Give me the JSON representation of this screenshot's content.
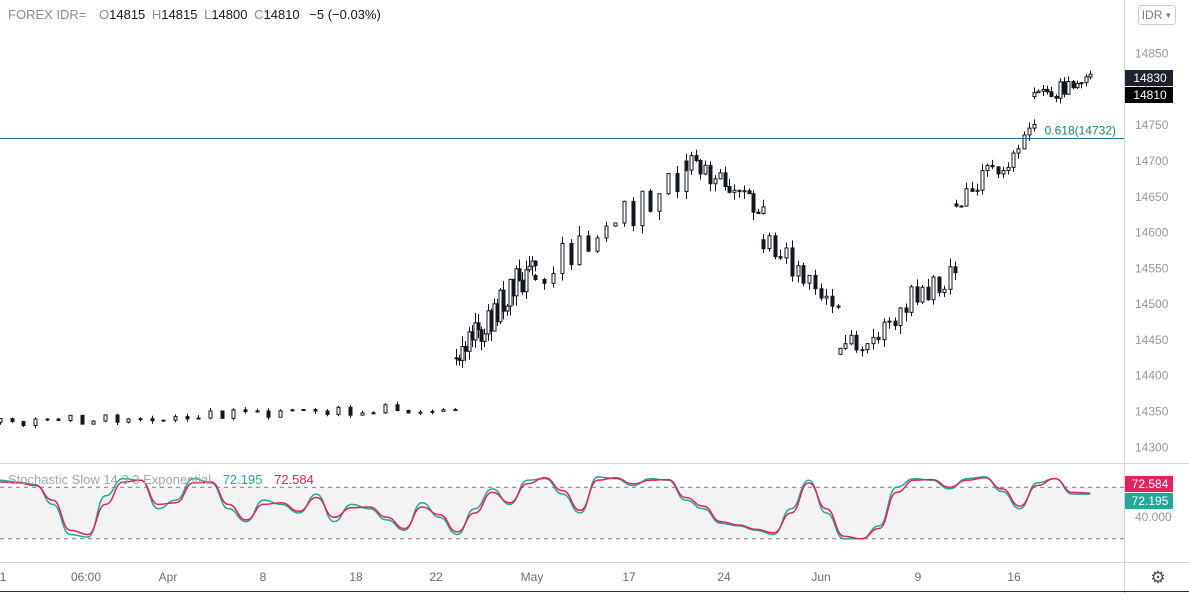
{
  "header": {
    "symbol": "FOREX IDR=",
    "open_label": "O",
    "open": "14815",
    "high_label": "H",
    "high": "14815",
    "low_label": "L",
    "low": "14800",
    "close_label": "C",
    "close": "14810",
    "change": "−5 (−0.03%)"
  },
  "currency_button": {
    "label": "IDR",
    "icon": "chevron-down-icon"
  },
  "settings": {
    "icon": "gear-icon"
  },
  "colors": {
    "candle": "#131722",
    "fib_line": "#1f7a86",
    "fib_label": "#1a7f84",
    "k_line": "#26a69a",
    "d_line": "#e0245e",
    "band_fill": "#f3f3f3",
    "axis_text": "#9598a1"
  },
  "chart_data": [
    {
      "type": "candlestick",
      "title": "",
      "price_axis": {
        "ticks": [
          14300,
          14350,
          14400,
          14450,
          14500,
          14550,
          14600,
          14650,
          14700,
          14750,
          14800,
          14850
        ],
        "ylim": [
          14278,
          14883
        ]
      },
      "time_axis": {
        "ticks": [
          "1",
          "06:00",
          "Apr",
          "8",
          "18",
          "22",
          "May",
          "17",
          "24",
          "Jun",
          "9",
          "16"
        ]
      },
      "last_price_labels": [
        {
          "value": "14830",
          "color": "#1e222d"
        },
        {
          "value": "14810",
          "color": "#000000"
        }
      ],
      "fibonacci_level": {
        "ratio": "0.618",
        "price": "14732",
        "label": "0.618(14732)"
      },
      "series": [
        {
          "segment": "late-Mar to 22",
          "start": 14335,
          "end": 14356,
          "low": 14322,
          "high": 14375,
          "bars": 40
        },
        {
          "segment": "23 to early May",
          "start": 14425,
          "end": 14560,
          "low": 14388,
          "high": 14567,
          "bars": 26
        },
        {
          "segment": "May to 17",
          "start": 14540,
          "end": 14680,
          "low": 14520,
          "high": 14693,
          "bars": 18
        },
        {
          "segment": "17 to 24",
          "start": 14700,
          "end": 14630,
          "low": 14598,
          "high": 14737,
          "bars": 17
        },
        {
          "segment": "24 to Jun",
          "start": 14590,
          "end": 14500,
          "low": 14467,
          "high": 14600,
          "bars": 14
        },
        {
          "segment": "Jun to 9",
          "start": 14430,
          "end": 14550,
          "low": 14418,
          "high": 14580,
          "bars": 22
        },
        {
          "segment": "9 to 16",
          "start": 14640,
          "end": 14740,
          "low": 14635,
          "high": 14760,
          "bars": 16
        },
        {
          "segment": "16 to end",
          "start": 14790,
          "end": 14810,
          "low": 14755,
          "high": 14850,
          "bars": 14
        }
      ]
    },
    {
      "type": "line",
      "title": "Stochastic Slow 14 3 3 Exponential",
      "k_value": "72.195",
      "d_value": "72.584",
      "band": {
        "upper": 80,
        "lower": 20
      },
      "ticks": [
        "40.000"
      ],
      "series": [
        {
          "name": "K",
          "values": [
            88,
            86,
            83,
            60,
            25,
            22,
            70,
            90,
            88,
            55,
            65,
            90,
            85,
            55,
            40,
            65,
            60,
            50,
            72,
            40,
            60,
            55,
            42,
            30,
            62,
            45,
            25,
            55,
            78,
            60,
            88,
            90,
            72,
            50,
            92,
            90,
            82,
            90,
            88,
            65,
            55,
            38,
            35,
            30,
            25,
            55,
            88,
            50,
            20,
            20,
            35,
            80,
            90,
            88,
            78,
            90,
            92,
            75,
            55,
            85,
            90,
            72,
            72
          ]
        },
        {
          "name": "D",
          "values": [
            86,
            85,
            82,
            65,
            30,
            25,
            60,
            86,
            88,
            60,
            62,
            85,
            86,
            60,
            42,
            60,
            62,
            52,
            68,
            45,
            56,
            57,
            45,
            32,
            57,
            48,
            28,
            50,
            74,
            62,
            84,
            91,
            76,
            53,
            88,
            91,
            84,
            88,
            89,
            68,
            58,
            40,
            36,
            31,
            27,
            50,
            85,
            55,
            23,
            20,
            32,
            74,
            88,
            89,
            80,
            88,
            91,
            78,
            58,
            82,
            90,
            74,
            73
          ]
        }
      ]
    }
  ]
}
